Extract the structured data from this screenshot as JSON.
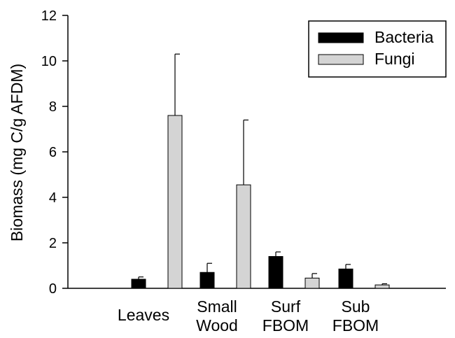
{
  "chart_data": {
    "type": "bar",
    "ylabel": "Biomass (mg C/g AFDM)",
    "xlabel": "",
    "ylim": [
      0,
      12
    ],
    "yticks": [
      "0",
      "2",
      "4",
      "6",
      "8",
      "10",
      "12"
    ],
    "categories": [
      [
        "Leaves"
      ],
      [
        "Small",
        "Wood"
      ],
      [
        "Surf",
        "FBOM"
      ],
      [
        "Sub",
        "FBOM"
      ]
    ],
    "series": [
      {
        "name": "Bacteria",
        "color": "#000000",
        "values": [
          0.4,
          0.7,
          1.4,
          0.85
        ],
        "errors": [
          0.1,
          0.4,
          0.2,
          0.2
        ]
      },
      {
        "name": "Fungi",
        "color": "#d4d4d4",
        "values": [
          7.6,
          4.55,
          0.45,
          0.15
        ],
        "errors": [
          2.7,
          2.85,
          0.2,
          0.05
        ]
      }
    ],
    "grid": false,
    "legend_position": "top-right"
  }
}
